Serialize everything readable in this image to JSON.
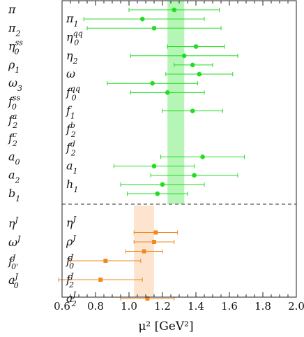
{
  "chart_data": {
    "type": "scatter",
    "title": "",
    "xlabel": "μ² [GeV²]",
    "xlim": [
      0.6,
      2.0
    ],
    "xticks": [
      "0.6",
      "0.8",
      "1.0",
      "1.2",
      "1.4",
      "1.6",
      "1.8",
      "2.0"
    ],
    "colors": {
      "upper_marker": "#22dd22",
      "upper_band": "#b5f5b5",
      "lower_marker": "#f08a1e",
      "lower_band": "#fde4cf",
      "separator": "#777777"
    },
    "bands": [
      {
        "name": "upper",
        "x": [
          1.23,
          1.33
        ]
      },
      {
        "name": "lower",
        "x": [
          1.03,
          1.15
        ]
      }
    ],
    "left_labels": [
      {
        "base": "π",
        "sup": "",
        "sub": ""
      },
      {
        "base": "π",
        "sup": "",
        "sub": "2"
      },
      {
        "base": "η",
        "sup": "ss",
        "sub": "0"
      },
      {
        "base": "ρ",
        "sup": "",
        "sub": "1"
      },
      {
        "base": "ω",
        "sup": "",
        "sub": "3"
      },
      {
        "base": "f",
        "sup": "ss",
        "sub": "0"
      },
      {
        "base": "f",
        "sup": "a",
        "sub": "2"
      },
      {
        "base": "f",
        "sup": "c",
        "sub": "2"
      },
      {
        "base": "a",
        "sup": "",
        "sub": "0"
      },
      {
        "base": "a",
        "sup": "",
        "sub": "2"
      },
      {
        "base": "b",
        "sup": "",
        "sub": "1"
      },
      {
        "base": "η",
        "sup": "J",
        "sub": ""
      },
      {
        "base": "ω",
        "sup": "J",
        "sub": ""
      },
      {
        "base": "f",
        "sup": "J",
        "sub": "0'"
      },
      {
        "base": "a",
        "sup": "J",
        "sub": "0"
      }
    ],
    "points": [
      {
        "base": "π",
        "sup": "",
        "sub": "",
        "x": 1.27,
        "xerr": [
          1.0,
          1.54
        ],
        "group": "upper"
      },
      {
        "base": "π",
        "sup": "",
        "sub": "1",
        "x": 1.08,
        "xerr": [
          0.73,
          1.45
        ],
        "group": "upper"
      },
      {
        "base": "π",
        "sup": "",
        "sub": "2",
        "x": 1.15,
        "xerr": [
          0.75,
          1.55
        ],
        "group": "upper"
      },
      {
        "base": "η",
        "sup": "qq",
        "sub": "0",
        "x": null,
        "xerr": null,
        "group": "upper"
      },
      {
        "base": "η",
        "sup": "ss",
        "sub": "0",
        "x": 1.4,
        "xerr": [
          1.23,
          1.57
        ],
        "group": "upper"
      },
      {
        "base": "η",
        "sup": "",
        "sub": "2",
        "x": 1.33,
        "xerr": [
          1.01,
          1.65
        ],
        "group": "upper"
      },
      {
        "base": "ρ",
        "sup": "",
        "sub": "1",
        "x": 1.38,
        "xerr": [
          1.27,
          1.5
        ],
        "group": "upper"
      },
      {
        "base": "ω",
        "sup": "",
        "sub": "",
        "x": 1.42,
        "xerr": [
          1.22,
          1.62
        ],
        "group": "upper"
      },
      {
        "base": "ω",
        "sup": "",
        "sub": "3",
        "x": 1.14,
        "xerr": [
          0.87,
          1.41
        ],
        "group": "upper"
      },
      {
        "base": "f",
        "sup": "qq",
        "sub": "0",
        "x": 1.23,
        "xerr": [
          1.01,
          1.45
        ],
        "group": "upper"
      },
      {
        "base": "f",
        "sup": "ss",
        "sub": "0",
        "x": null,
        "xerr": null,
        "group": "upper"
      },
      {
        "base": "f",
        "sup": "",
        "sub": "1",
        "x": 1.38,
        "xerr": [
          1.2,
          1.56
        ],
        "group": "upper"
      },
      {
        "base": "f",
        "sup": "a",
        "sub": "2",
        "x": null,
        "xerr": null,
        "group": "upper"
      },
      {
        "base": "f",
        "sup": "b",
        "sub": "2",
        "x": null,
        "xerr": null,
        "group": "upper"
      },
      {
        "base": "f",
        "sup": "c",
        "sub": "2",
        "x": null,
        "xerr": null,
        "group": "upper"
      },
      {
        "base": "f",
        "sup": "d",
        "sub": "2",
        "x": null,
        "xerr": null,
        "group": "upper"
      },
      {
        "base": "a",
        "sup": "",
        "sub": "0",
        "x": 1.44,
        "xerr": [
          1.19,
          1.69
        ],
        "group": "upper"
      },
      {
        "base": "a",
        "sup": "",
        "sub": "1",
        "x": 1.15,
        "xerr": [
          0.91,
          1.39
        ],
        "group": "upper"
      },
      {
        "base": "a",
        "sup": "",
        "sub": "2",
        "x": 1.39,
        "xerr": [
          1.13,
          1.65
        ],
        "group": "upper"
      },
      {
        "base": "h",
        "sup": "",
        "sub": "1",
        "x": 1.2,
        "xerr": [
          0.95,
          1.45
        ],
        "group": "upper"
      },
      {
        "base": "b",
        "sup": "",
        "sub": "1",
        "x": 1.17,
        "xerr": [
          0.99,
          1.35
        ],
        "group": "upper"
      },
      {
        "base": "η",
        "sup": "J",
        "sub": "",
        "x": null,
        "xerr": null,
        "group": "lower"
      },
      {
        "base": "π",
        "sup": "J",
        "sub": "",
        "x": 1.16,
        "xerr": [
          1.03,
          1.29
        ],
        "group": "lower"
      },
      {
        "base": "ρ",
        "sup": "J",
        "sub": "",
        "x": 1.15,
        "xerr": [
          1.03,
          1.27
        ],
        "group": "lower"
      },
      {
        "base": "ω",
        "sup": "J",
        "sub": "",
        "x": 1.09,
        "xerr": [
          0.98,
          1.2
        ],
        "group": "lower"
      },
      {
        "base": "f",
        "sup": "J",
        "sub": "0",
        "x": 0.86,
        "xerr": [
          0.65,
          1.07
        ],
        "group": "lower"
      },
      {
        "base": "f",
        "sup": "J",
        "sub": "0'",
        "x": null,
        "xerr": null,
        "group": "lower"
      },
      {
        "base": "f",
        "sup": "J",
        "sub": "2",
        "x": 0.83,
        "xerr": [
          0.58,
          1.08
        ],
        "group": "lower"
      },
      {
        "base": "a",
        "sup": "J",
        "sub": "0",
        "x": null,
        "xerr": null,
        "group": "lower"
      },
      {
        "base": "a",
        "sup": "J",
        "sub": "2",
        "x": 1.11,
        "xerr": [
          0.95,
          1.27
        ],
        "group": "lower"
      }
    ]
  }
}
